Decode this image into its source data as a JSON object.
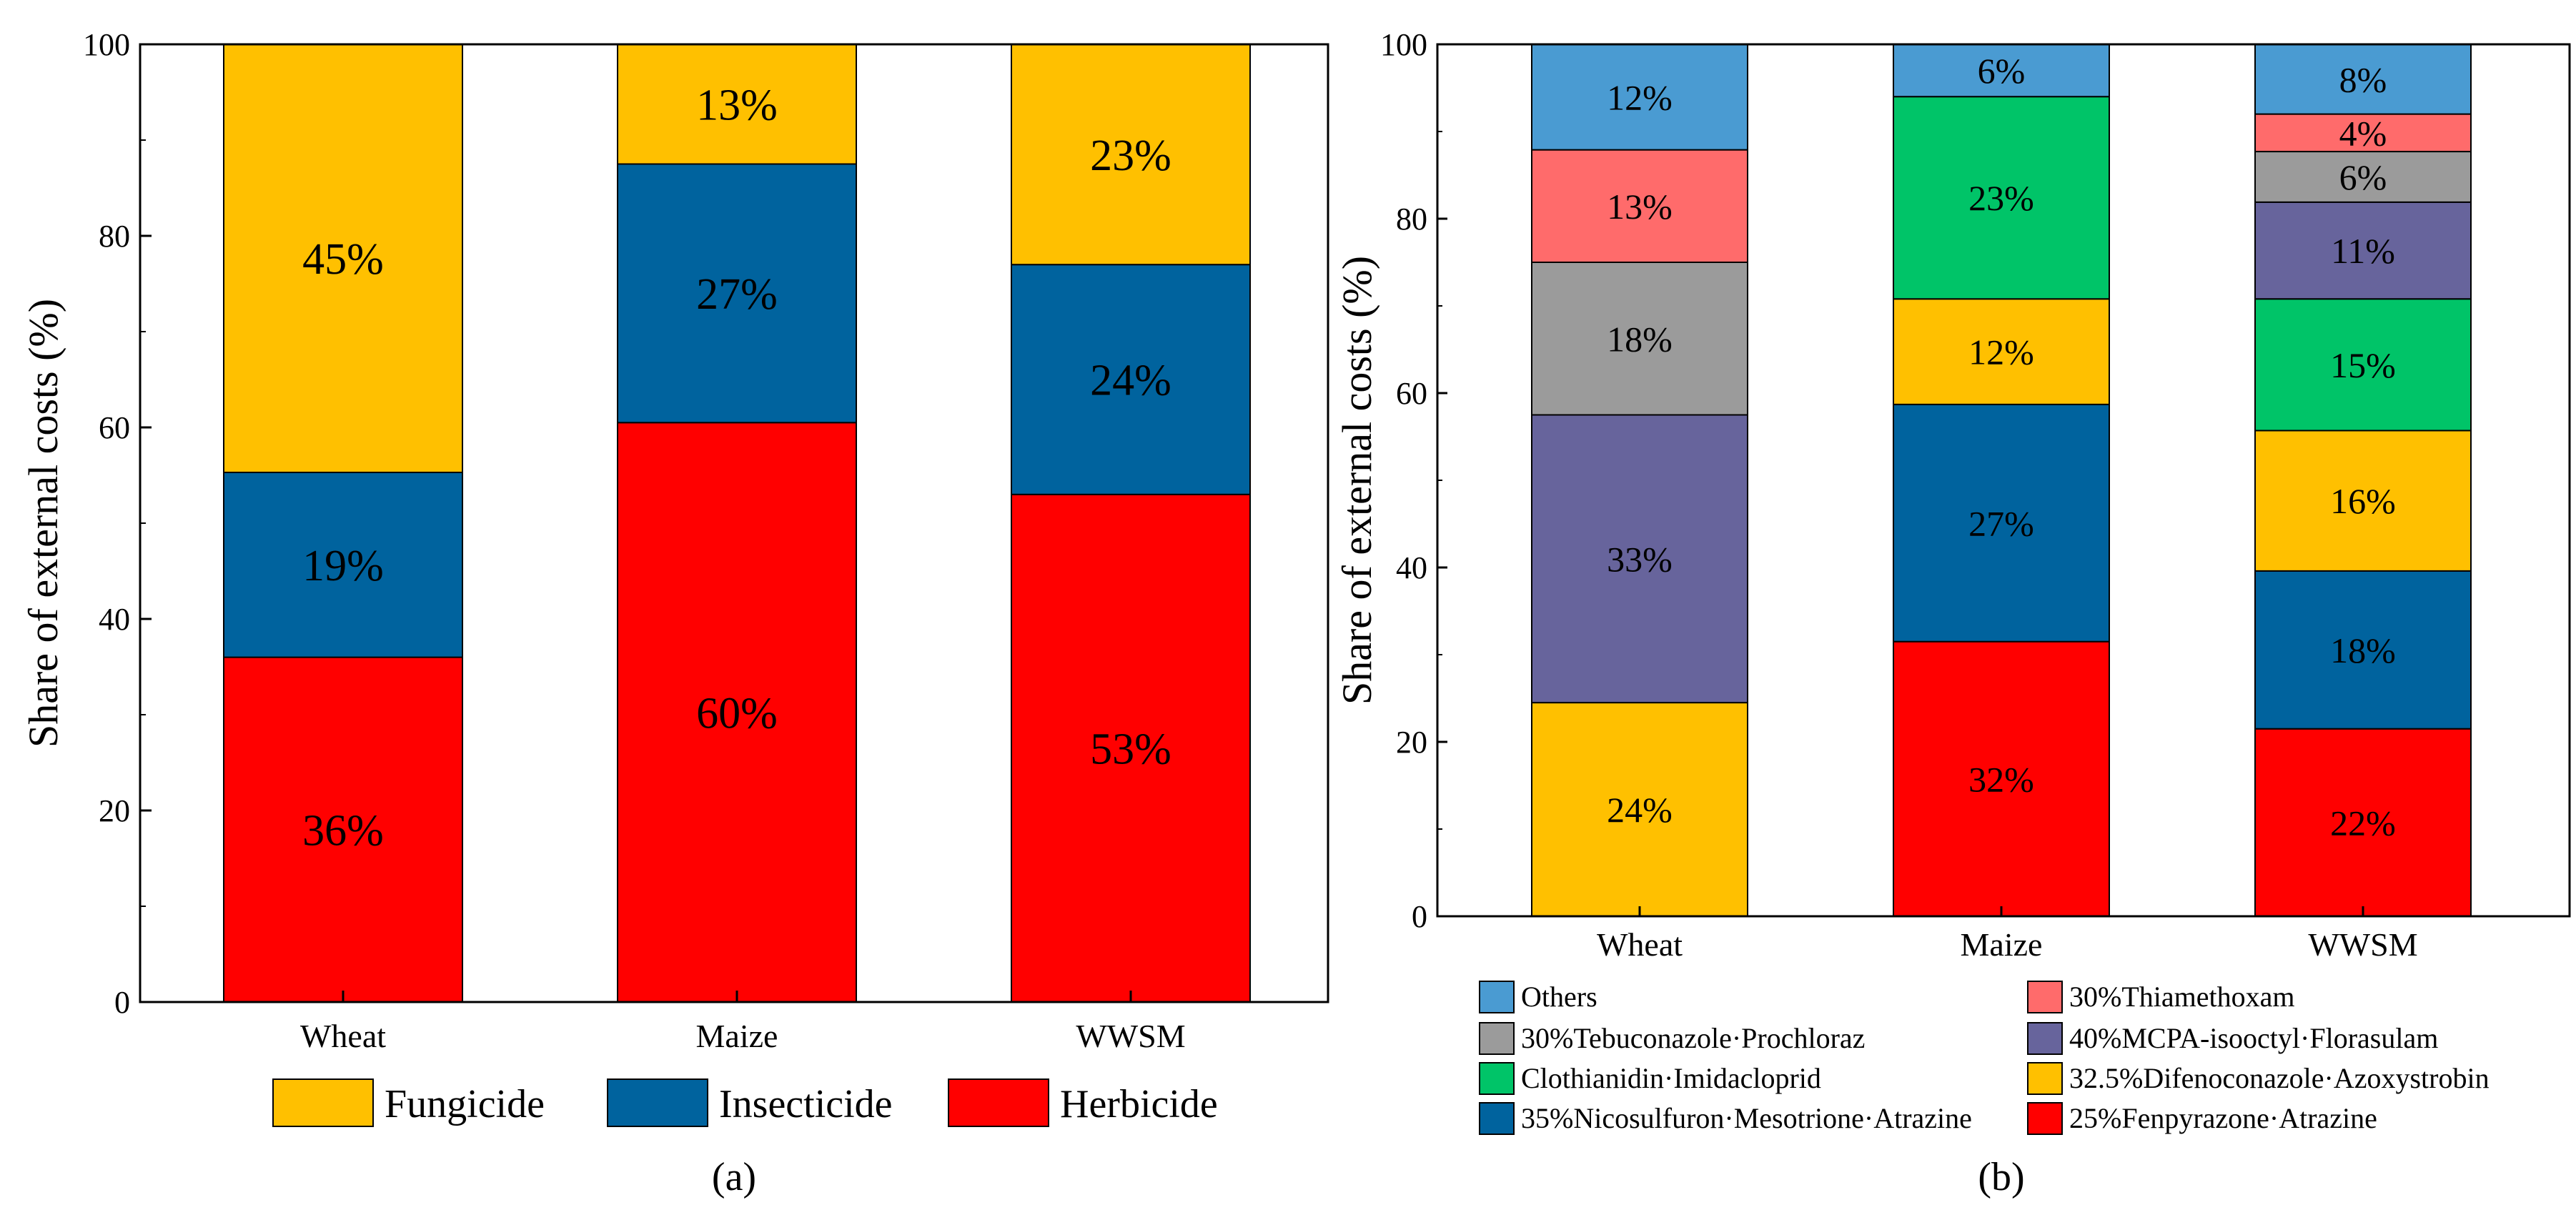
{
  "chart_data": [
    {
      "type": "bar",
      "stacked": true,
      "panel_label": "(a)",
      "title": "",
      "xlabel": "",
      "ylabel": "Share of external costs (%)",
      "ylim": [
        0,
        100
      ],
      "yticks": [
        "0",
        "20",
        "40",
        "60",
        "80",
        "100"
      ],
      "categories": [
        "Wheat",
        "Maize",
        "WWSM"
      ],
      "legend_position": "bottom",
      "series": [
        {
          "name": "Herbicide",
          "color": "#FF0000",
          "values": [
            36,
            60.5,
            53
          ],
          "labels": [
            "36%",
            "60%",
            "53%"
          ]
        },
        {
          "name": "Insecticide",
          "color": "#00639E",
          "values": [
            19.3,
            27,
            24
          ],
          "labels": [
            "19%",
            "27%",
            "24%"
          ]
        },
        {
          "name": "Fungicide",
          "color": "#FFC000",
          "values": [
            44.7,
            12.5,
            23
          ],
          "labels": [
            "45%",
            "13%",
            "23%"
          ]
        }
      ],
      "legend_order": [
        "Fungicide",
        "Insecticide",
        "Herbicide"
      ]
    },
    {
      "type": "bar",
      "stacked": true,
      "panel_label": "(b)",
      "title": "",
      "xlabel": "",
      "ylabel": "Share of external costs (%)",
      "ylim": [
        0,
        100
      ],
      "yticks": [
        "0",
        "20",
        "40",
        "60",
        "80",
        "100"
      ],
      "categories": [
        "Wheat",
        "Maize",
        "WWSM"
      ],
      "legend_position": "bottom",
      "series": [
        {
          "name": "25%Fenpyrazone·Atrazine",
          "color": "#FF0000",
          "values": [
            0,
            31.5,
            21.5
          ],
          "labels": [
            "",
            "32%",
            "22%"
          ]
        },
        {
          "name": "35%Nicosulfuron·Mesotrione·Atrazine",
          "color": "#00639E",
          "values": [
            0,
            27.2,
            18.1
          ],
          "labels": [
            "",
            "27%",
            "18%"
          ]
        },
        {
          "name": "32.5%Difenoconazole·Azoxystrobin",
          "color": "#FFC000",
          "values": [
            24.5,
            12.1,
            16.1
          ],
          "labels": [
            "24%",
            "12%",
            "16%"
          ]
        },
        {
          "name": "Clothianidin·Imidacloprid",
          "color": "#00C468",
          "values": [
            0,
            23.2,
            15.1
          ],
          "labels": [
            "",
            "23%",
            "15%"
          ]
        },
        {
          "name": "40%MCPA-isooctyl·Florasulam",
          "color": "#67649C",
          "values": [
            33,
            0,
            11.1
          ],
          "labels": [
            "33%",
            "",
            "11%"
          ]
        },
        {
          "name": "30%Tebuconazole·Prochloraz",
          "color": "#9B9B9B",
          "values": [
            17.5,
            0,
            5.8
          ],
          "labels": [
            "18%",
            "",
            "6%"
          ]
        },
        {
          "name": "30%Thiamethoxam",
          "color": "#FF6B6B",
          "values": [
            12.9,
            0,
            4.3
          ],
          "labels": [
            "13%",
            "",
            "4%"
          ]
        },
        {
          "name": "Others",
          "color": "#4A9BD2",
          "values": [
            12.1,
            6,
            8
          ],
          "labels": [
            "12%",
            "6%",
            "8%"
          ]
        }
      ],
      "legend_rows": [
        [
          "Others",
          "30%Thiamethoxam"
        ],
        [
          "30%Tebuconazole·Prochloraz",
          "40%MCPA-isooctyl·Florasulam"
        ],
        [
          "Clothianidin·Imidacloprid",
          "32.5%Difenoconazole·Azoxystrobin"
        ],
        [
          "35%Nicosulfuron·Mesotrione·Atrazine",
          "25%Fenpyrazone·Atrazine"
        ]
      ]
    }
  ]
}
